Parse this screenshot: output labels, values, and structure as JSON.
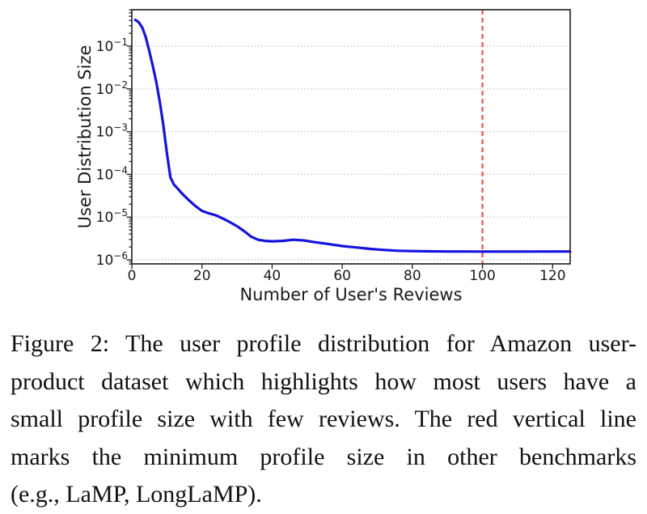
{
  "figure": {
    "caption": {
      "lines": [
        "Figure 2: The user profile distribution for Amazon user-",
        "product dataset which highlights how most users have a",
        "small profile size with few reviews. The red vertical line",
        "marks the minimum profile size in other benchmarks",
        "(e.g., LaMP, LongLaMP)."
      ]
    }
  },
  "chart_data": {
    "type": "line",
    "title": "",
    "xlabel": "Number of User's Reviews",
    "ylabel": "User Distribution Size",
    "x_ticks": [
      0,
      20,
      40,
      60,
      80,
      100,
      120
    ],
    "xlim": [
      0,
      125
    ],
    "y_scale": "log",
    "y_tick_exponents": [
      -1,
      -2,
      -3,
      -4,
      -5,
      -6
    ],
    "ylim": [
      8e-07,
      0.72
    ],
    "grid": "horizontal dotted gridlines at each decade",
    "legend": "none",
    "series": [
      {
        "name": "user-profile-distribution",
        "color": "#1414dd",
        "points": [
          [
            1,
            0.41
          ],
          [
            2,
            0.36
          ],
          [
            3,
            0.27
          ],
          [
            4,
            0.16
          ],
          [
            5,
            0.075
          ],
          [
            6,
            0.034
          ],
          [
            7,
            0.014
          ],
          [
            8,
            0.0048
          ],
          [
            9,
            0.0014
          ],
          [
            10,
            0.00031
          ],
          [
            11,
            8.5e-05
          ],
          [
            12,
            5.8e-05
          ],
          [
            13,
            4.7e-05
          ],
          [
            14,
            3.8e-05
          ],
          [
            16,
            2.6e-05
          ],
          [
            18,
            1.85e-05
          ],
          [
            20,
            1.4e-05
          ],
          [
            22,
            1.22e-05
          ],
          [
            24,
            1.1e-05
          ],
          [
            26,
            9.2e-06
          ],
          [
            28,
            7.6e-06
          ],
          [
            30,
            6.1e-06
          ],
          [
            32,
            4.7e-06
          ],
          [
            34,
            3.5e-06
          ],
          [
            36,
            2.95e-06
          ],
          [
            38,
            2.78e-06
          ],
          [
            40,
            2.72e-06
          ],
          [
            43,
            2.78e-06
          ],
          [
            46,
            2.95e-06
          ],
          [
            49,
            2.85e-06
          ],
          [
            52,
            2.6e-06
          ],
          [
            56,
            2.35e-06
          ],
          [
            60,
            2.1e-06
          ],
          [
            64,
            1.95e-06
          ],
          [
            68,
            1.8e-06
          ],
          [
            72,
            1.7e-06
          ],
          [
            76,
            1.63e-06
          ],
          [
            80,
            1.6e-06
          ],
          [
            85,
            1.58e-06
          ],
          [
            90,
            1.57e-06
          ],
          [
            100,
            1.56e-06
          ],
          [
            110,
            1.56e-06
          ],
          [
            125,
            1.57e-06
          ]
        ]
      }
    ],
    "vline": {
      "x": 100,
      "color": "#fb4b4b",
      "style": "dashed",
      "meaning": "minimum profile size in other benchmarks (LaMP, LongLaMP)"
    }
  }
}
